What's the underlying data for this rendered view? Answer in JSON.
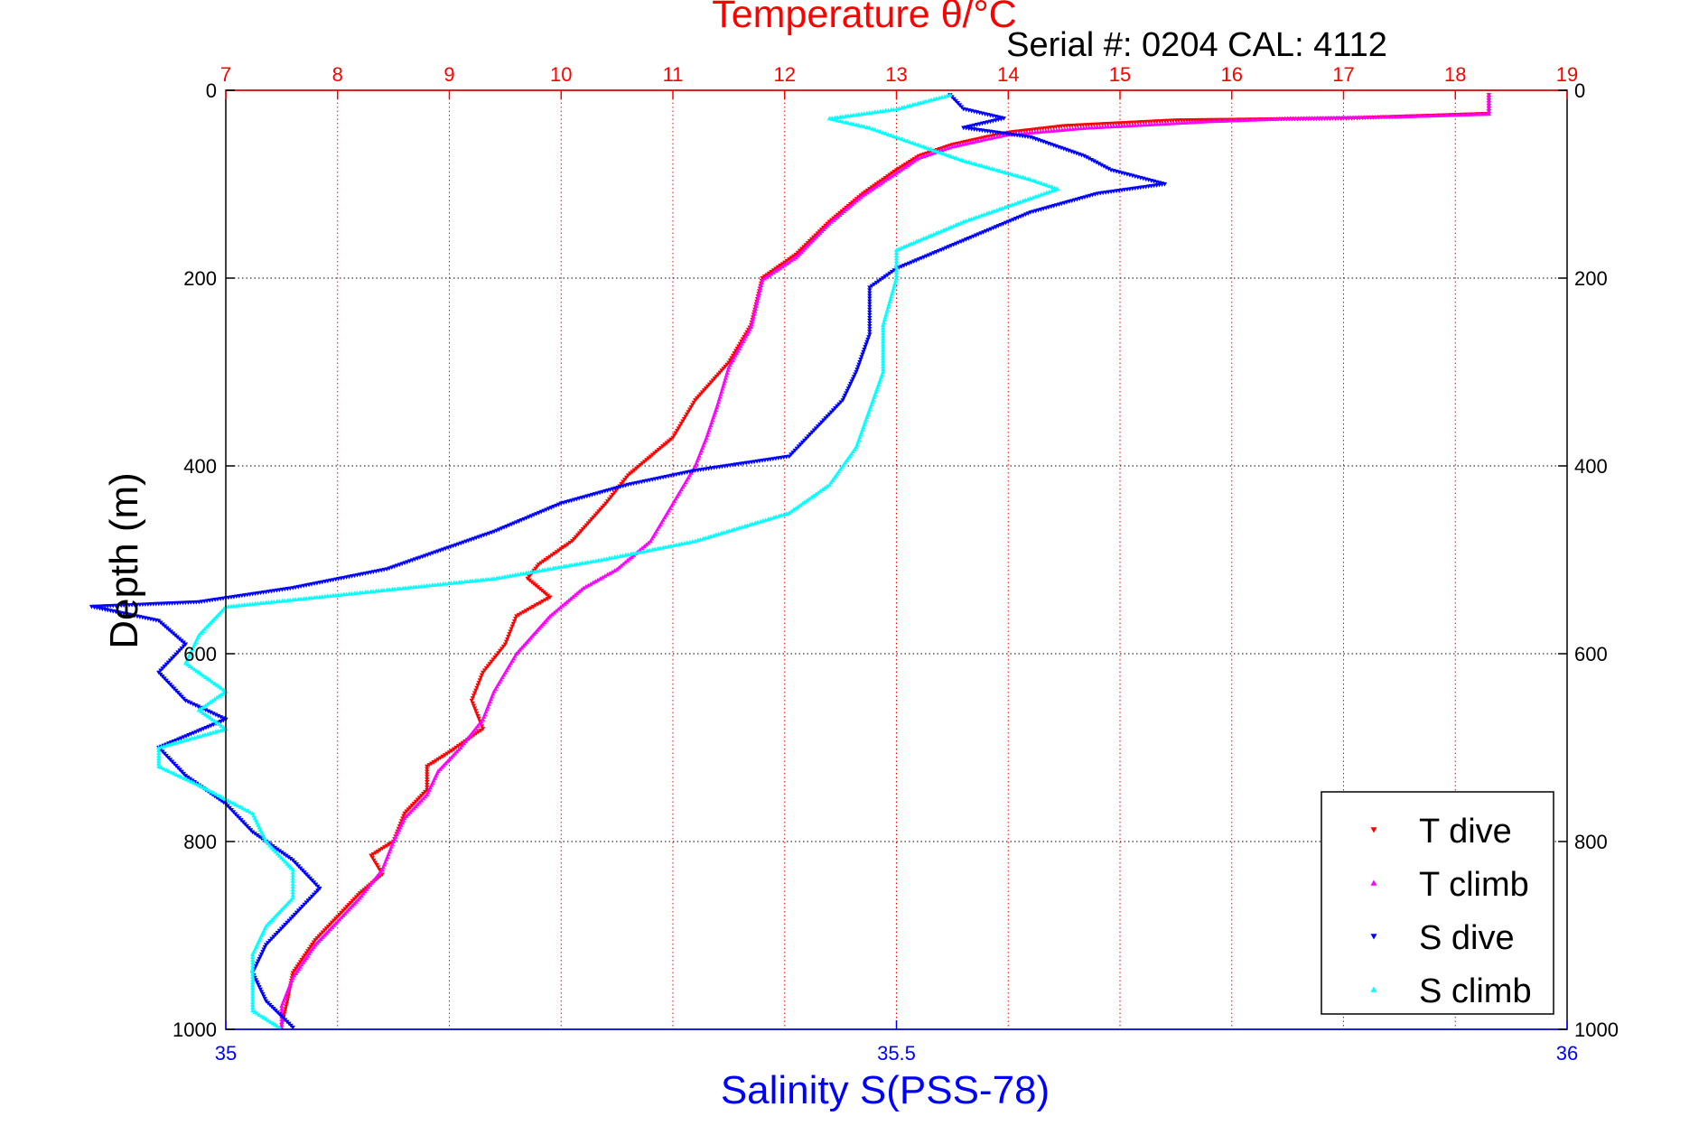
{
  "chart_data": {
    "type": "scatter",
    "title": "Temperature θ/°C",
    "subtitle": "Serial #: 0204  CAL: 4112",
    "ylabel": "Depth (m)",
    "xlabel": "Salinity S(PSS-78)",
    "grid": true,
    "legend_position": "bottom-right",
    "y_axis": {
      "label": "Depth (m)",
      "range": [
        0,
        1000
      ],
      "reversed": true,
      "ticks": [
        0,
        200,
        400,
        600,
        800,
        1000
      ],
      "tick_labels": [
        "0",
        "200",
        "400",
        "600",
        "800",
        "1000"
      ]
    },
    "x_axis_top": {
      "label": "Temperature θ/°C",
      "range": [
        7,
        19
      ],
      "ticks": [
        7,
        8,
        9,
        10,
        11,
        12,
        13,
        14,
        15,
        16,
        17,
        18,
        19
      ],
      "tick_labels": [
        "7",
        "8",
        "9",
        "10",
        "11",
        "12",
        "13",
        "14",
        "15",
        "16",
        "17",
        "18",
        "19"
      ],
      "color": "#ff0000"
    },
    "x_axis_bottom": {
      "label": "Salinity S(PSS-78)",
      "range": [
        35,
        36
      ],
      "ticks": [
        35,
        35.5,
        36
      ],
      "tick_labels": [
        "35",
        "35.5",
        "36"
      ],
      "color": "#0000ff"
    },
    "series": [
      {
        "name": "T dive",
        "axis": "temperature",
        "color": "#ff0000",
        "marker": "triangle-down",
        "points": [
          [
            18.3,
            5
          ],
          [
            18.3,
            25
          ],
          [
            17,
            30
          ],
          [
            15.5,
            32
          ],
          [
            14.5,
            38
          ],
          [
            14.0,
            45
          ],
          [
            13.8,
            50
          ],
          [
            13.5,
            58
          ],
          [
            13.2,
            70
          ],
          [
            13.0,
            85
          ],
          [
            12.7,
            110
          ],
          [
            12.4,
            140
          ],
          [
            12.1,
            175
          ],
          [
            11.8,
            200
          ],
          [
            11.7,
            250
          ],
          [
            11.5,
            290
          ],
          [
            11.2,
            330
          ],
          [
            11.0,
            370
          ],
          [
            10.6,
            410
          ],
          [
            10.4,
            440
          ],
          [
            10.1,
            480
          ],
          [
            9.8,
            505
          ],
          [
            9.7,
            520
          ],
          [
            9.9,
            540
          ],
          [
            9.6,
            560
          ],
          [
            9.5,
            590
          ],
          [
            9.3,
            620
          ],
          [
            9.2,
            650
          ],
          [
            9.3,
            680
          ],
          [
            9.0,
            705
          ],
          [
            8.8,
            720
          ],
          [
            8.8,
            745
          ],
          [
            8.6,
            770
          ],
          [
            8.5,
            800
          ],
          [
            8.3,
            815
          ],
          [
            8.4,
            835
          ],
          [
            8.2,
            855
          ],
          [
            8.0,
            880
          ],
          [
            7.8,
            905
          ],
          [
            7.6,
            940
          ],
          [
            7.55,
            970
          ],
          [
            7.5,
            995
          ]
        ]
      },
      {
        "name": "T climb",
        "axis": "temperature",
        "color": "#ff00ff",
        "marker": "triangle-up",
        "points": [
          [
            18.3,
            5
          ],
          [
            18.3,
            25
          ],
          [
            17.5,
            28
          ],
          [
            16.5,
            30
          ],
          [
            15.8,
            33
          ],
          [
            14.7,
            40
          ],
          [
            14.0,
            47
          ],
          [
            13.8,
            52
          ],
          [
            13.5,
            60
          ],
          [
            13.2,
            72
          ],
          [
            13.0,
            88
          ],
          [
            12.7,
            112
          ],
          [
            12.4,
            142
          ],
          [
            12.1,
            178
          ],
          [
            11.8,
            202
          ],
          [
            11.7,
            252
          ],
          [
            11.5,
            295
          ],
          [
            11.4,
            335
          ],
          [
            11.3,
            370
          ],
          [
            11.2,
            400
          ],
          [
            11.0,
            440
          ],
          [
            10.8,
            480
          ],
          [
            10.5,
            510
          ],
          [
            10.2,
            530
          ],
          [
            9.9,
            560
          ],
          [
            9.6,
            600
          ],
          [
            9.4,
            640
          ],
          [
            9.3,
            670
          ],
          [
            9.1,
            700
          ],
          [
            8.9,
            725
          ],
          [
            8.8,
            750
          ],
          [
            8.6,
            775
          ],
          [
            8.5,
            800
          ],
          [
            8.4,
            830
          ],
          [
            8.2,
            860
          ],
          [
            8.0,
            885
          ],
          [
            7.8,
            910
          ],
          [
            7.6,
            945
          ],
          [
            7.5,
            975
          ],
          [
            7.5,
            998
          ]
        ]
      },
      {
        "name": "S dive",
        "axis": "salinity",
        "color": "#0000ff",
        "marker": "triangle-down",
        "points": [
          [
            35.54,
            5
          ],
          [
            35.55,
            20
          ],
          [
            35.58,
            30
          ],
          [
            35.55,
            40
          ],
          [
            35.6,
            50
          ],
          [
            35.64,
            70
          ],
          [
            35.66,
            85
          ],
          [
            35.7,
            100
          ],
          [
            35.65,
            110
          ],
          [
            35.6,
            130
          ],
          [
            35.55,
            160
          ],
          [
            35.5,
            190
          ],
          [
            35.48,
            210
          ],
          [
            35.48,
            260
          ],
          [
            35.47,
            300
          ],
          [
            35.46,
            330
          ],
          [
            35.44,
            360
          ],
          [
            35.42,
            390
          ],
          [
            35.35,
            405
          ],
          [
            35.3,
            420
          ],
          [
            35.25,
            440
          ],
          [
            35.2,
            470
          ],
          [
            35.12,
            510
          ],
          [
            35.05,
            530
          ],
          [
            34.98,
            545
          ],
          [
            34.9,
            550
          ],
          [
            34.95,
            565
          ],
          [
            34.97,
            590
          ],
          [
            34.95,
            620
          ],
          [
            34.97,
            650
          ],
          [
            35.0,
            670
          ],
          [
            34.95,
            700
          ],
          [
            34.97,
            730
          ],
          [
            35.0,
            760
          ],
          [
            35.02,
            790
          ],
          [
            35.05,
            820
          ],
          [
            35.07,
            850
          ],
          [
            35.05,
            880
          ],
          [
            35.03,
            910
          ],
          [
            35.02,
            940
          ],
          [
            35.03,
            970
          ],
          [
            35.05,
            998
          ]
        ]
      },
      {
        "name": "S climb",
        "axis": "salinity",
        "color": "#00ffff",
        "marker": "triangle-up",
        "points": [
          [
            35.54,
            5
          ],
          [
            35.5,
            20
          ],
          [
            35.45,
            30
          ],
          [
            35.48,
            40
          ],
          [
            35.5,
            50
          ],
          [
            35.52,
            60
          ],
          [
            35.55,
            75
          ],
          [
            35.6,
            95
          ],
          [
            35.62,
            105
          ],
          [
            35.6,
            115
          ],
          [
            35.55,
            140
          ],
          [
            35.5,
            170
          ],
          [
            35.5,
            200
          ],
          [
            35.49,
            250
          ],
          [
            35.49,
            300
          ],
          [
            35.48,
            340
          ],
          [
            35.47,
            380
          ],
          [
            35.45,
            420
          ],
          [
            35.42,
            450
          ],
          [
            35.35,
            480
          ],
          [
            35.28,
            500
          ],
          [
            35.2,
            520
          ],
          [
            35.1,
            535
          ],
          [
            35.0,
            550
          ],
          [
            34.98,
            580
          ],
          [
            34.97,
            610
          ],
          [
            35.0,
            640
          ],
          [
            34.98,
            660
          ],
          [
            35.0,
            680
          ],
          [
            34.95,
            700
          ],
          [
            34.95,
            720
          ],
          [
            34.98,
            740
          ],
          [
            35.02,
            770
          ],
          [
            35.03,
            800
          ],
          [
            35.05,
            830
          ],
          [
            35.05,
            860
          ],
          [
            35.03,
            890
          ],
          [
            35.02,
            920
          ],
          [
            35.02,
            950
          ],
          [
            35.02,
            980
          ],
          [
            35.04,
            998
          ]
        ]
      }
    ]
  }
}
